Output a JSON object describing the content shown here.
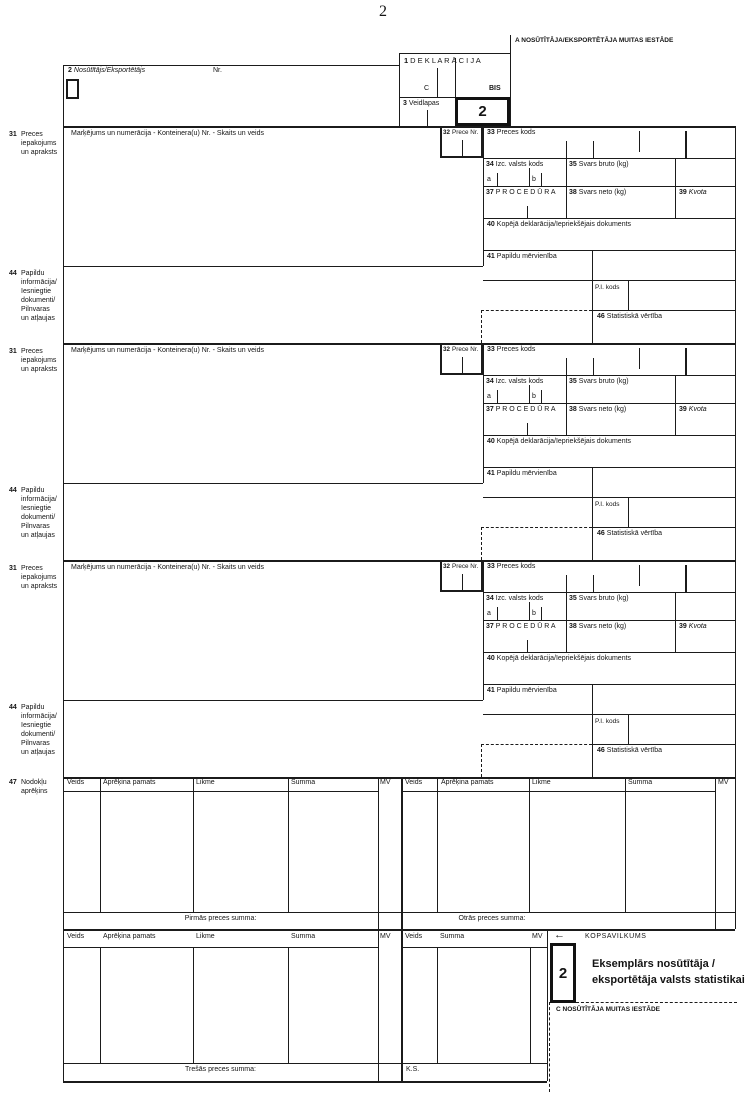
{
  "page_number": "2",
  "header": {
    "customs_office_a": "A  NOSŪTĪTĀJA/EKSPORTĒTĀJA MUITAS IESTĀDE",
    "box1": {
      "num": "1",
      "label": "D E K L A R Ā C I J A",
      "c": "C",
      "bis": "BIS"
    },
    "box2": {
      "num": "2",
      "label": "Nosūtītājs/Eksportētājs",
      "nr": "Nr."
    },
    "box3": {
      "num": "3",
      "label": "Veidlapas"
    },
    "copy_number": "2"
  },
  "item_block": {
    "box31": {
      "num": "31",
      "lines": [
        "Preces",
        "iepakojums",
        "un apraksts"
      ],
      "marks_label": "Marķējums un numerācija - Konteinera(u) Nr. - Skaits un veids"
    },
    "box32": {
      "num": "32",
      "label": "Prece Nr."
    },
    "box33": {
      "num": "33",
      "label": "Preces kods"
    },
    "box34": {
      "num": "34",
      "label": "Izc. valsts kods",
      "a": "a",
      "b": "b"
    },
    "box35": {
      "num": "35",
      "label": "Svars bruto (kg)"
    },
    "box37": {
      "num": "37",
      "label": "P R O C E D Ū R A"
    },
    "box38": {
      "num": "38",
      "label": "Svars neto  (kg)"
    },
    "box39": {
      "num": "39",
      "label": "Kvota"
    },
    "box40": {
      "num": "40",
      "label": "Kopējā deklarācija/Iepriekšējais dokuments"
    },
    "box41": {
      "num": "41",
      "label": "Papildu mērvienība"
    },
    "pi_kods": "P.I. kods",
    "box46": {
      "num": "46",
      "label": "Statistiskā vērtība"
    },
    "box44": {
      "num": "44",
      "lines": [
        "Papildu",
        "informācija/",
        "Iesniegtie",
        "dokumenti/",
        "Pilnvaras",
        "un atļaujas"
      ]
    }
  },
  "tax": {
    "box47_num": "47",
    "box47_lines": [
      "Nodokļu",
      "aprēķins"
    ],
    "cols": [
      "Veids",
      "Aprēķina pamats",
      "Likme",
      "Summa",
      "MV"
    ],
    "cols_summary": [
      "Veids",
      "Summa",
      "MV"
    ],
    "first_total": "Pirmās preces summa:",
    "second_total": "Otrās preces summa:",
    "third_total": "Trešās preces summa:",
    "summary_title": "KOPSAVILKUMS",
    "arrow_icon": "←",
    "ks": "K.S."
  },
  "footer": {
    "copy_number": "2",
    "copy_text_line1": "Eksemplārs nosūtītāja /",
    "copy_text_line2": "eksportētāja valsts statistikai",
    "customs_office_c": "C NOSŪTĪTĀJA MUITAS IESTĀDE"
  }
}
